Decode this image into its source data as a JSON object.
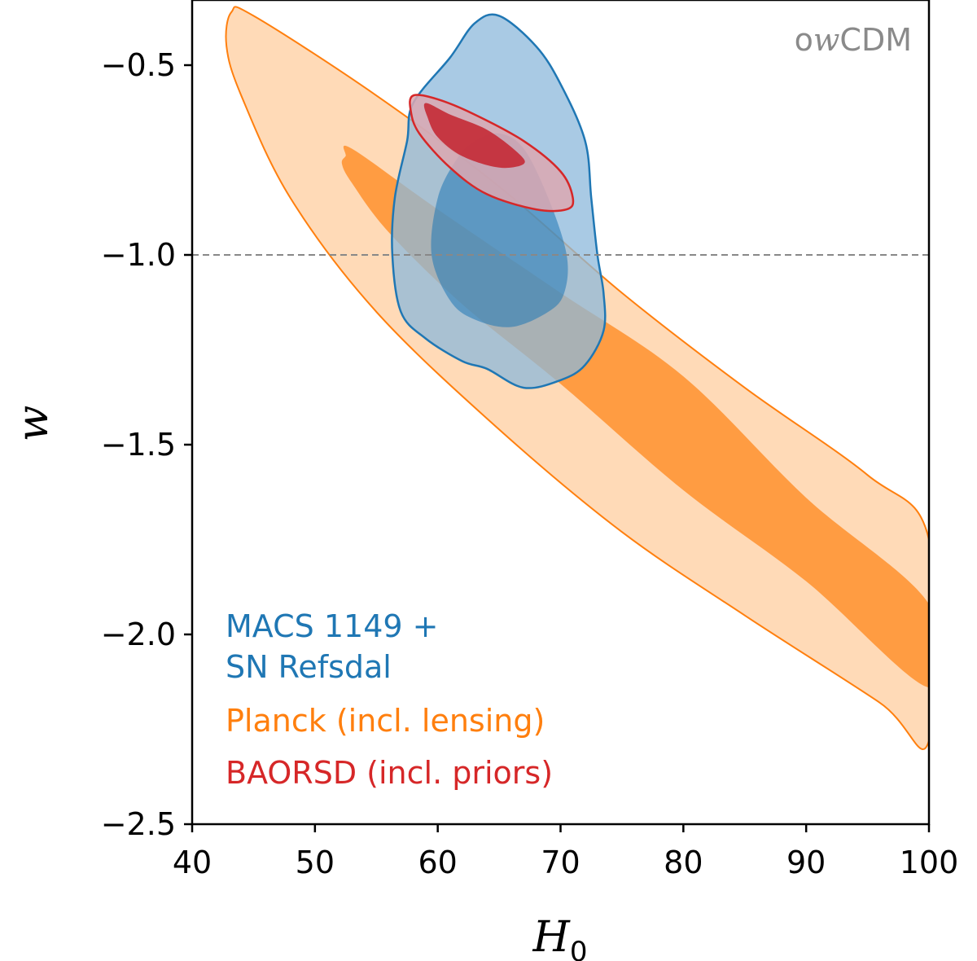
{
  "chart_data": {
    "type": "contour",
    "title": "",
    "xlabel": "H",
    "xlabel_subscript": "0",
    "ylabel": "w",
    "xlim": [
      40,
      100
    ],
    "ylim": [
      -2.5,
      -0.35
    ],
    "x_ticks": [
      40,
      50,
      60,
      70,
      80,
      90,
      100
    ],
    "x_tick_labels": [
      "40",
      "50",
      "60",
      "70",
      "80",
      "90",
      "100"
    ],
    "y_ticks": [
      -0.5,
      -1.0,
      -1.5,
      -2.0,
      -2.5
    ],
    "y_tick_labels": [
      "−0.5",
      "−1.0",
      "−1.5",
      "−2.0",
      "−2.5"
    ],
    "reference_line": {
      "y": -1.0,
      "style": "dashed",
      "color": "#888888"
    },
    "model_label": {
      "prefix": "o",
      "italic": "w",
      "suffix": "CDM"
    },
    "series": [
      {
        "name": "Planck (incl. lensing)",
        "color": "#ff7f0e",
        "outer_fill": "#ffd3aa",
        "inner_fill": "#ff9535",
        "outer_contour": [
          [
            43.2,
            -0.36
          ],
          [
            45,
            -0.37
          ],
          [
            55,
            -0.58
          ],
          [
            65,
            -0.82
          ],
          [
            75,
            -1.1
          ],
          [
            85,
            -1.35
          ],
          [
            95,
            -1.58
          ],
          [
            100,
            -1.75
          ],
          [
            100,
            -2.28
          ],
          [
            96,
            -2.18
          ],
          [
            85,
            -1.95
          ],
          [
            75,
            -1.73
          ],
          [
            65,
            -1.46
          ],
          [
            55,
            -1.15
          ],
          [
            48,
            -0.85
          ],
          [
            44,
            -0.58
          ],
          [
            42.8,
            -0.45
          ]
        ],
        "inner_contour": [
          [
            52.5,
            -0.74
          ],
          [
            53,
            -0.72
          ],
          [
            60,
            -0.88
          ],
          [
            70,
            -1.1
          ],
          [
            80,
            -1.32
          ],
          [
            90,
            -1.64
          ],
          [
            100,
            -1.92
          ],
          [
            100,
            -2.14
          ],
          [
            90,
            -1.86
          ],
          [
            80,
            -1.62
          ],
          [
            70,
            -1.34
          ],
          [
            62,
            -1.13
          ],
          [
            56,
            -0.94
          ],
          [
            53,
            -0.81
          ],
          [
            52.2,
            -0.76
          ]
        ]
      },
      {
        "name": "MACS 1149 + SN Refsdal",
        "name_lines": [
          "MACS 1149 +",
          "SN Refsdal"
        ],
        "color": "#1f77b4",
        "outer_fill": "#8cb8db",
        "inner_fill": "#1f77b4",
        "outer_contour": [
          [
            65,
            -0.37
          ],
          [
            68,
            -0.45
          ],
          [
            70,
            -0.55
          ],
          [
            72,
            -0.7
          ],
          [
            72.5,
            -0.85
          ],
          [
            73,
            -1.0
          ],
          [
            73.5,
            -1.1
          ],
          [
            73.5,
            -1.2
          ],
          [
            72,
            -1.29
          ],
          [
            70,
            -1.33
          ],
          [
            67,
            -1.35
          ],
          [
            64,
            -1.3
          ],
          [
            62,
            -1.28
          ],
          [
            59,
            -1.22
          ],
          [
            57,
            -1.15
          ],
          [
            56.3,
            -1.0
          ],
          [
            56.5,
            -0.85
          ],
          [
            57.5,
            -0.7
          ],
          [
            58,
            -0.6
          ],
          [
            61,
            -0.48
          ],
          [
            63,
            -0.39
          ]
        ],
        "inner_contour": [
          [
            65,
            -0.68
          ],
          [
            67,
            -0.72
          ],
          [
            69,
            -0.85
          ],
          [
            70.5,
            -1.0
          ],
          [
            70.3,
            -1.1
          ],
          [
            69,
            -1.15
          ],
          [
            66,
            -1.19
          ],
          [
            63,
            -1.17
          ],
          [
            61,
            -1.12
          ],
          [
            59.5,
            -1.0
          ],
          [
            60,
            -0.85
          ],
          [
            61.5,
            -0.75
          ],
          [
            63,
            -0.7
          ]
        ]
      },
      {
        "name": "BAORSD (incl. priors)",
        "color": "#d62728",
        "outer_fill": "#dca8b2",
        "inner_fill": "#c42a35",
        "outer_contour": [
          [
            58,
            -0.58
          ],
          [
            60,
            -0.59
          ],
          [
            63,
            -0.63
          ],
          [
            67,
            -0.7
          ],
          [
            70,
            -0.78
          ],
          [
            71,
            -0.85
          ],
          [
            70.5,
            -0.88
          ],
          [
            68,
            -0.88
          ],
          [
            64,
            -0.84
          ],
          [
            61,
            -0.77
          ],
          [
            58.5,
            -0.68
          ],
          [
            57.8,
            -0.62
          ]
        ],
        "inner_contour": [
          [
            59,
            -0.6
          ],
          [
            61,
            -0.63
          ],
          [
            64,
            -0.67
          ],
          [
            66.5,
            -0.73
          ],
          [
            67,
            -0.76
          ],
          [
            65,
            -0.77
          ],
          [
            62,
            -0.74
          ],
          [
            60,
            -0.69
          ],
          [
            59.2,
            -0.64
          ]
        ]
      }
    ]
  }
}
